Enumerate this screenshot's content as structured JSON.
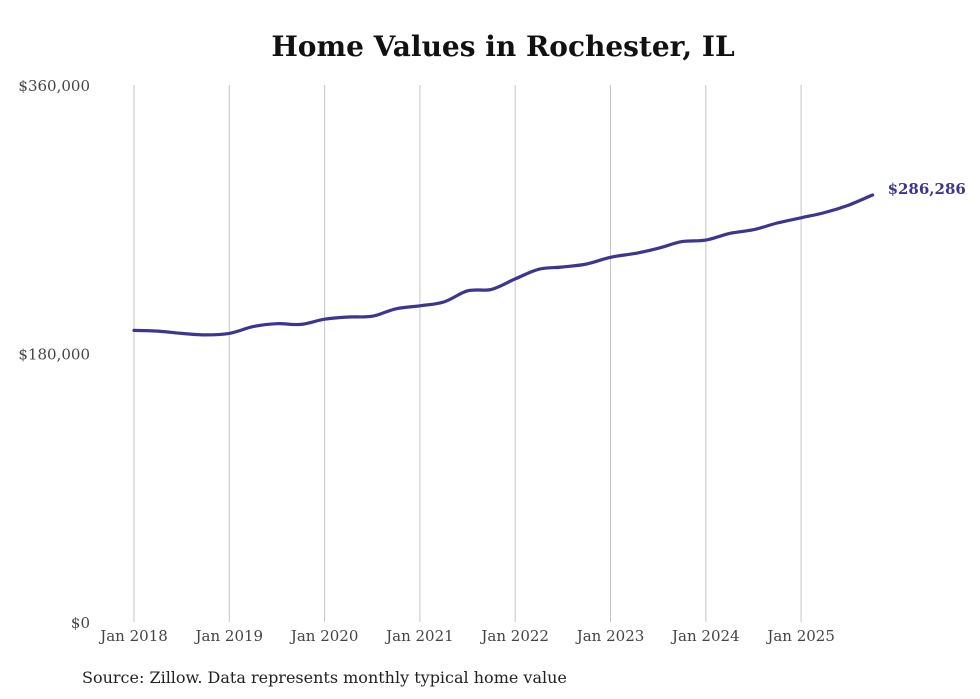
{
  "chart_data": {
    "type": "line",
    "title": "Home Values in Rochester, IL",
    "source": "Source: Zillow. Data represents monthly typical home value",
    "xlabel": "",
    "ylabel": "",
    "ylim": [
      0,
      360000
    ],
    "yticks": [
      0,
      180000,
      360000
    ],
    "ytick_labels": [
      "$0",
      "$180,000",
      "$360,000"
    ],
    "x_ticks": [
      2018,
      2019,
      2020,
      2021,
      2022,
      2023,
      2024,
      2025
    ],
    "x_tick_labels": [
      "Jan 2018",
      "Jan 2019",
      "Jan 2020",
      "Jan 2021",
      "Jan 2022",
      "Jan 2023",
      "Jan 2024",
      "Jan 2025"
    ],
    "xlim": [
      2018,
      2025.75
    ],
    "grid": "vertical",
    "line_color": "#3d3590",
    "end_label": "$286,286",
    "series": [
      {
        "name": "Typical home value",
        "points": [
          [
            2018.0,
            195500
          ],
          [
            2018.25,
            195000
          ],
          [
            2018.5,
            193500
          ],
          [
            2018.75,
            192500
          ],
          [
            2019.0,
            193500
          ],
          [
            2019.25,
            198000
          ],
          [
            2019.5,
            200000
          ],
          [
            2019.75,
            199500
          ],
          [
            2020.0,
            203000
          ],
          [
            2020.25,
            204500
          ],
          [
            2020.5,
            205000
          ],
          [
            2020.75,
            210000
          ],
          [
            2021.0,
            212000
          ],
          [
            2021.25,
            214500
          ],
          [
            2021.5,
            222000
          ],
          [
            2021.75,
            223000
          ],
          [
            2022.0,
            230000
          ],
          [
            2022.25,
            236500
          ],
          [
            2022.5,
            238000
          ],
          [
            2022.75,
            240000
          ],
          [
            2023.0,
            244500
          ],
          [
            2023.25,
            247000
          ],
          [
            2023.5,
            250500
          ],
          [
            2023.75,
            255000
          ],
          [
            2024.0,
            256000
          ],
          [
            2024.25,
            260500
          ],
          [
            2024.5,
            263000
          ],
          [
            2024.75,
            267500
          ],
          [
            2025.0,
            271000
          ],
          [
            2025.25,
            274500
          ],
          [
            2025.5,
            279500
          ],
          [
            2025.75,
            286286
          ]
        ]
      }
    ]
  }
}
